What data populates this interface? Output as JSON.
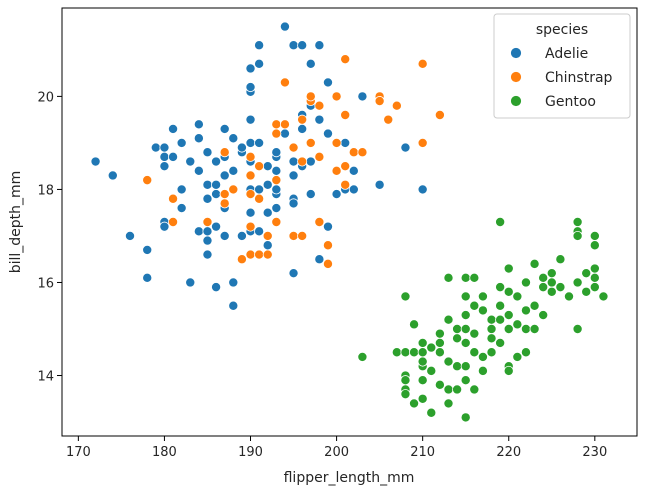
{
  "chart_data": {
    "type": "scatter",
    "title": "",
    "xlabel": "flipper_length_mm",
    "ylabel": "bill_depth_mm",
    "xlim": [
      168.1,
      234.9
    ],
    "ylim": [
      12.7,
      21.9
    ],
    "xticks": [
      170,
      180,
      190,
      200,
      210,
      220,
      230
    ],
    "yticks": [
      14,
      16,
      18,
      20
    ],
    "grid": false,
    "legend": {
      "title": "species",
      "position": "top-right"
    },
    "series": [
      {
        "name": "Adelie",
        "color": "#1f77b4",
        "points": [
          [
            172,
            18.6
          ],
          [
            174,
            18.3
          ],
          [
            176,
            17.0
          ],
          [
            178,
            16.7
          ],
          [
            178,
            16.1
          ],
          [
            179,
            18.9
          ],
          [
            180,
            18.9
          ],
          [
            180,
            18.7
          ],
          [
            180,
            18.5
          ],
          [
            180,
            17.3
          ],
          [
            180,
            17.2
          ],
          [
            181,
            18.7
          ],
          [
            181,
            19.3
          ],
          [
            182,
            18.0
          ],
          [
            182,
            17.6
          ],
          [
            182,
            19.0
          ],
          [
            183,
            16.0
          ],
          [
            183,
            18.6
          ],
          [
            184,
            17.1
          ],
          [
            184,
            19.4
          ],
          [
            184,
            19.1
          ],
          [
            184,
            18.4
          ],
          [
            185,
            18.8
          ],
          [
            185,
            18.1
          ],
          [
            185,
            17.8
          ],
          [
            185,
            17.1
          ],
          [
            185,
            16.9
          ],
          [
            185,
            16.6
          ],
          [
            186,
            18.6
          ],
          [
            186,
            17.9
          ],
          [
            186,
            18.1
          ],
          [
            186,
            17.2
          ],
          [
            186,
            15.9
          ],
          [
            187,
            18.3
          ],
          [
            187,
            17.6
          ],
          [
            187,
            17.0
          ],
          [
            187,
            19.3
          ],
          [
            187,
            18.7
          ],
          [
            187,
            17.9
          ],
          [
            188,
            18.4
          ],
          [
            188,
            19.1
          ],
          [
            188,
            16.0
          ],
          [
            188,
            15.5
          ],
          [
            189,
            17.0
          ],
          [
            189,
            18.8
          ],
          [
            189,
            18.9
          ],
          [
            190,
            19.5
          ],
          [
            190,
            18.6
          ],
          [
            190,
            17.9
          ],
          [
            190,
            17.1
          ],
          [
            190,
            18.0
          ],
          [
            190,
            19.0
          ],
          [
            190,
            20.6
          ],
          [
            190,
            20.1
          ],
          [
            190,
            20.2
          ],
          [
            190,
            17.5
          ],
          [
            191,
            20.7
          ],
          [
            191,
            21.1
          ],
          [
            191,
            19.0
          ],
          [
            191,
            18.0
          ],
          [
            191,
            17.1
          ],
          [
            192,
            18.5
          ],
          [
            192,
            17.5
          ],
          [
            192,
            16.8
          ],
          [
            192,
            18.1
          ],
          [
            193,
            17.9
          ],
          [
            193,
            18.4
          ],
          [
            193,
            18.0
          ],
          [
            193,
            18.7
          ],
          [
            193,
            18.8
          ],
          [
            193,
            17.6
          ],
          [
            194,
            21.5
          ],
          [
            194,
            19.4
          ],
          [
            194,
            19.2
          ],
          [
            195,
            18.6
          ],
          [
            195,
            21.1
          ],
          [
            195,
            17.8
          ],
          [
            195,
            18.3
          ],
          [
            195,
            17.7
          ],
          [
            195,
            16.2
          ],
          [
            196,
            19.6
          ],
          [
            196,
            18.5
          ],
          [
            196,
            21.1
          ],
          [
            196,
            19.3
          ],
          [
            197,
            20.7
          ],
          [
            197,
            19.8
          ],
          [
            197,
            18.6
          ],
          [
            197,
            17.9
          ],
          [
            198,
            21.1
          ],
          [
            198,
            19.5
          ],
          [
            198,
            16.5
          ],
          [
            199,
            20.3
          ],
          [
            199,
            19.2
          ],
          [
            199,
            17.2
          ],
          [
            200,
            17.9
          ],
          [
            201,
            19.0
          ],
          [
            201,
            18.0
          ],
          [
            202,
            18.4
          ],
          [
            202,
            18.0
          ],
          [
            203,
            20.0
          ],
          [
            205,
            18.1
          ],
          [
            208,
            18.9
          ],
          [
            210,
            18.0
          ]
        ]
      },
      {
        "name": "Chinstrap",
        "color": "#ff7f0e",
        "points": [
          [
            178,
            18.2
          ],
          [
            181,
            17.8
          ],
          [
            181,
            17.3
          ],
          [
            185,
            17.3
          ],
          [
            187,
            18.8
          ],
          [
            187,
            17.9
          ],
          [
            187,
            17.7
          ],
          [
            188,
            18.0
          ],
          [
            189,
            16.5
          ],
          [
            190,
            16.6
          ],
          [
            190,
            18.3
          ],
          [
            190,
            17.9
          ],
          [
            190,
            18.7
          ],
          [
            190,
            17.2
          ],
          [
            191,
            17.8
          ],
          [
            191,
            16.6
          ],
          [
            191,
            18.5
          ],
          [
            192,
            16.6
          ],
          [
            192,
            17.0
          ],
          [
            193,
            17.3
          ],
          [
            193,
            19.4
          ],
          [
            193,
            18.2
          ],
          [
            193,
            19.2
          ],
          [
            194,
            19.4
          ],
          [
            194,
            20.3
          ],
          [
            195,
            18.9
          ],
          [
            195,
            17.0
          ],
          [
            196,
            18.6
          ],
          [
            196,
            19.5
          ],
          [
            196,
            17.0
          ],
          [
            197,
            19.9
          ],
          [
            197,
            20.0
          ],
          [
            197,
            19.0
          ],
          [
            198,
            19.8
          ],
          [
            198,
            18.7
          ],
          [
            198,
            17.3
          ],
          [
            199,
            16.4
          ],
          [
            199,
            16.8
          ],
          [
            200,
            18.4
          ],
          [
            200,
            19.0
          ],
          [
            200,
            20.0
          ],
          [
            201,
            18.1
          ],
          [
            201,
            18.5
          ],
          [
            201,
            20.8
          ],
          [
            201,
            19.6
          ],
          [
            202,
            18.8
          ],
          [
            203,
            18.8
          ],
          [
            205,
            20.0
          ],
          [
            205,
            19.9
          ],
          [
            206,
            19.5
          ],
          [
            207,
            19.8
          ],
          [
            210,
            19.0
          ],
          [
            210,
            20.7
          ],
          [
            212,
            19.6
          ]
        ]
      },
      {
        "name": "Gentoo",
        "color": "#2ca02c",
        "points": [
          [
            203,
            14.4
          ],
          [
            207,
            14.5
          ],
          [
            208,
            14.5
          ],
          [
            208,
            15.7
          ],
          [
            208,
            14.0
          ],
          [
            208,
            13.9
          ],
          [
            208,
            13.7
          ],
          [
            208,
            13.6
          ],
          [
            209,
            14.5
          ],
          [
            209,
            13.4
          ],
          [
            209,
            15.1
          ],
          [
            210,
            14.7
          ],
          [
            210,
            14.5
          ],
          [
            210,
            14.2
          ],
          [
            210,
            13.9
          ],
          [
            210,
            13.5
          ],
          [
            210,
            14.3
          ],
          [
            211,
            13.2
          ],
          [
            211,
            14.6
          ],
          [
            211,
            14.1
          ],
          [
            212,
            14.5
          ],
          [
            212,
            14.9
          ],
          [
            212,
            13.8
          ],
          [
            212,
            14.7
          ],
          [
            213,
            16.1
          ],
          [
            213,
            15.2
          ],
          [
            213,
            14.3
          ],
          [
            213,
            13.7
          ],
          [
            213,
            13.4
          ],
          [
            214,
            14.8
          ],
          [
            214,
            13.7
          ],
          [
            214,
            14.2
          ],
          [
            214,
            15.0
          ],
          [
            215,
            13.1
          ],
          [
            215,
            16.1
          ],
          [
            215,
            15.7
          ],
          [
            215,
            15.3
          ],
          [
            215,
            15.0
          ],
          [
            215,
            14.7
          ],
          [
            215,
            14.2
          ],
          [
            215,
            13.9
          ],
          [
            216,
            16.1
          ],
          [
            216,
            15.5
          ],
          [
            216,
            14.9
          ],
          [
            216,
            14.5
          ],
          [
            216,
            13.7
          ],
          [
            217,
            15.4
          ],
          [
            217,
            14.4
          ],
          [
            217,
            14.1
          ],
          [
            217,
            15.7
          ],
          [
            218,
            15.2
          ],
          [
            218,
            15.0
          ],
          [
            218,
            14.8
          ],
          [
            218,
            14.5
          ],
          [
            219,
            17.3
          ],
          [
            219,
            15.9
          ],
          [
            219,
            15.5
          ],
          [
            219,
            15.2
          ],
          [
            219,
            14.7
          ],
          [
            220,
            16.3
          ],
          [
            220,
            15.8
          ],
          [
            220,
            15.3
          ],
          [
            220,
            15.0
          ],
          [
            220,
            14.2
          ],
          [
            220,
            14.1
          ],
          [
            221,
            15.7
          ],
          [
            221,
            15.1
          ],
          [
            221,
            14.4
          ],
          [
            222,
            16.0
          ],
          [
            222,
            15.4
          ],
          [
            222,
            15.0
          ],
          [
            222,
            14.5
          ],
          [
            223,
            16.4
          ],
          [
            223,
            15.5
          ],
          [
            223,
            15.0
          ],
          [
            224,
            16.1
          ],
          [
            224,
            15.9
          ],
          [
            224,
            15.3
          ],
          [
            225,
            16.2
          ],
          [
            225,
            16.0
          ],
          [
            225,
            15.8
          ],
          [
            226,
            16.5
          ],
          [
            226,
            15.9
          ],
          [
            227,
            15.7
          ],
          [
            228,
            17.3
          ],
          [
            228,
            17.1
          ],
          [
            228,
            17.0
          ],
          [
            228,
            16.0
          ],
          [
            228,
            15.0
          ],
          [
            229,
            16.2
          ],
          [
            229,
            15.8
          ],
          [
            230,
            17.0
          ],
          [
            230,
            16.8
          ],
          [
            230,
            16.3
          ],
          [
            230,
            16.1
          ],
          [
            230,
            15.9
          ],
          [
            231,
            15.7
          ]
        ]
      }
    ]
  }
}
